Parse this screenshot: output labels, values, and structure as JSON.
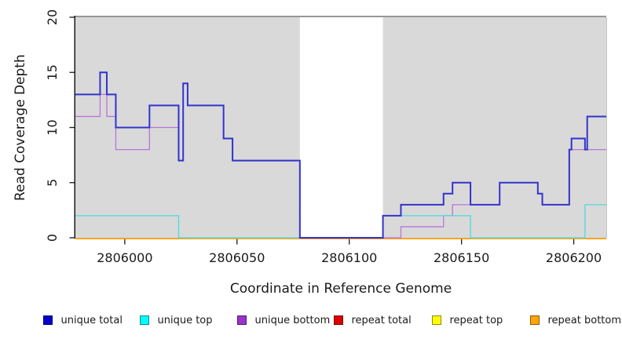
{
  "figure": {
    "background": "#ffffff",
    "plot_bg": "#d9d9d9",
    "frame_top_color": "#979797",
    "frame_right_color": "#c6c6c6",
    "axis_color": "#1a1a1a"
  },
  "chart_data": {
    "type": "line",
    "step": true,
    "title": "",
    "xlabel": "Coordinate in Reference Genome",
    "ylabel": "Read Coverage Depth",
    "xlim": [
      2805978,
      2806214.5
    ],
    "ylim": [
      0,
      20
    ],
    "x_ticks": [
      2806000,
      2806050,
      2806100,
      2806150,
      2806200
    ],
    "y_ticks": [
      0,
      5,
      10,
      15,
      20
    ],
    "grid": false,
    "legend_position": "bottom",
    "gap_region": {
      "x_start": 2806078,
      "x_end": 2806115,
      "color": "#ffffff"
    },
    "series": [
      {
        "name": "repeat total",
        "color": "#dd0000",
        "line_width": 1.2,
        "points": [
          [
            2805978,
            0
          ],
          [
            2806214.5,
            0
          ]
        ]
      },
      {
        "name": "repeat top",
        "color": "#ffff00",
        "line_width": 1.2,
        "points": [
          [
            2805978,
            0
          ],
          [
            2806214.5,
            0
          ]
        ]
      },
      {
        "name": "repeat bottom",
        "color": "#ff9a00",
        "line_width": 1.5,
        "points": [
          [
            2805978,
            0
          ],
          [
            2806214.5,
            0
          ]
        ]
      },
      {
        "name": "unique bottom",
        "color": "#ba76d8",
        "line_width": 1.3,
        "points": [
          [
            2805978,
            11
          ],
          [
            2805989,
            13
          ],
          [
            2805992,
            11
          ],
          [
            2805996,
            8
          ],
          [
            2806011,
            10
          ],
          [
            2806024,
            7
          ],
          [
            2806026,
            14
          ],
          [
            2806028,
            12
          ],
          [
            2806044,
            9
          ],
          [
            2806048,
            7
          ],
          [
            2806078,
            0
          ],
          [
            2806123,
            1
          ],
          [
            2806142,
            2
          ],
          [
            2806146,
            3
          ],
          [
            2806167,
            5
          ],
          [
            2806184,
            4
          ],
          [
            2806186,
            3
          ],
          [
            2806198,
            8
          ],
          [
            2806214.5,
            8
          ]
        ]
      },
      {
        "name": "unique top",
        "color": "#4fd9de",
        "line_width": 1.3,
        "points": [
          [
            2805978,
            2
          ],
          [
            2806024,
            0
          ],
          [
            2806115,
            2
          ],
          [
            2806154,
            0
          ],
          [
            2806205,
            3
          ],
          [
            2806214.5,
            3
          ]
        ]
      },
      {
        "name": "unique total",
        "color": "#3333cc",
        "line_width": 2,
        "points": [
          [
            2805978,
            13
          ],
          [
            2805989,
            15
          ],
          [
            2805992,
            13
          ],
          [
            2805996,
            10
          ],
          [
            2806011,
            12
          ],
          [
            2806024,
            7
          ],
          [
            2806026,
            14
          ],
          [
            2806028,
            12
          ],
          [
            2806044,
            9
          ],
          [
            2806048,
            7
          ],
          [
            2806078,
            0
          ],
          [
            2806115,
            2
          ],
          [
            2806123,
            3
          ],
          [
            2806142,
            4
          ],
          [
            2806146,
            5
          ],
          [
            2806154,
            3
          ],
          [
            2806167,
            5
          ],
          [
            2806184,
            4
          ],
          [
            2806186,
            3
          ],
          [
            2806198,
            8
          ],
          [
            2806199,
            9
          ],
          [
            2806205,
            8
          ],
          [
            2806206,
            11
          ],
          [
            2806214.5,
            11
          ]
        ]
      }
    ],
    "legend": [
      {
        "label": "unique total",
        "color": "#0000cc"
      },
      {
        "label": "unique top",
        "color": "#00ffff"
      },
      {
        "label": "unique bottom",
        "color": "#9932cc"
      },
      {
        "label": "repeat total",
        "color": "#dd0000"
      },
      {
        "label": "repeat top",
        "color": "#ffff00"
      },
      {
        "label": "repeat bottom",
        "color": "#ffa500"
      }
    ]
  }
}
